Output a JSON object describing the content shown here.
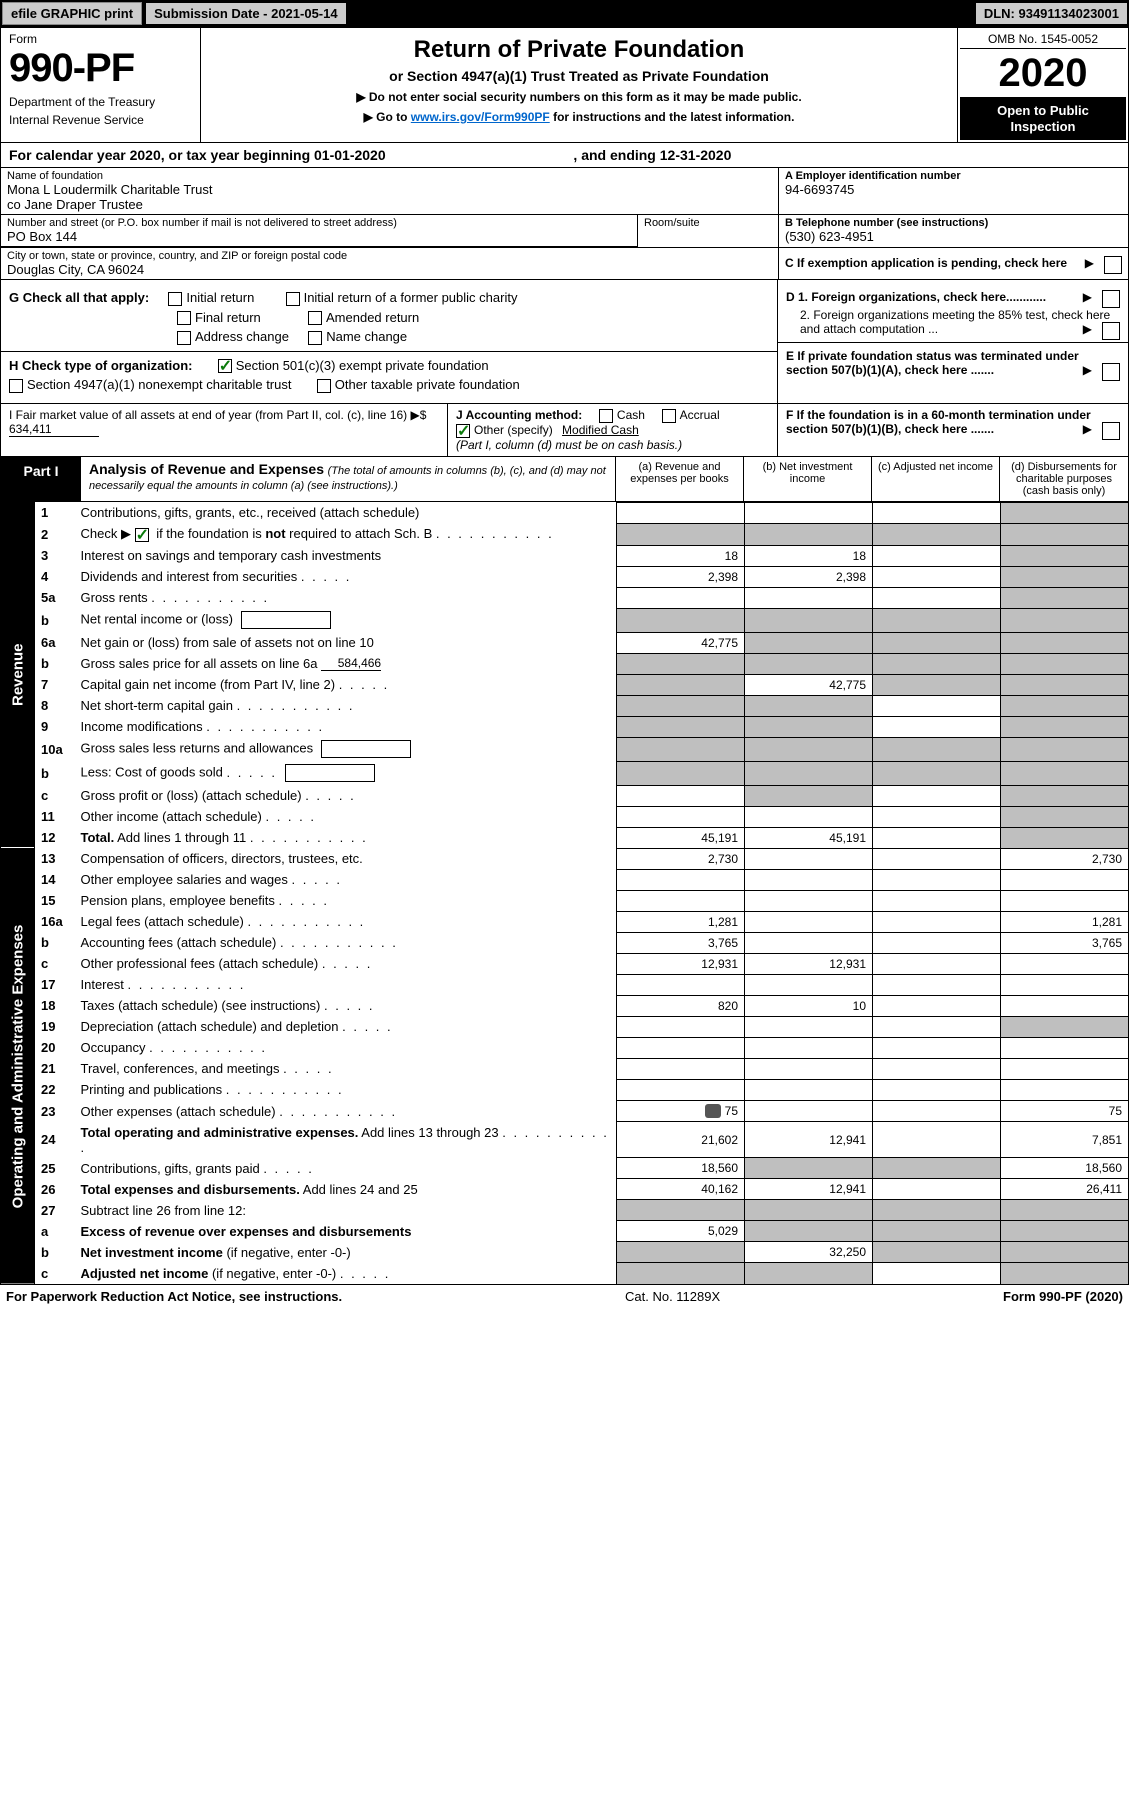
{
  "topbar": {
    "efile": "efile GRAPHIC print",
    "submission": "Submission Date - 2021-05-14",
    "dln": "DLN: 93491134023001"
  },
  "header": {
    "form_word": "Form",
    "form_num": "990-PF",
    "dept1": "Department of the Treasury",
    "dept2": "Internal Revenue Service",
    "title": "Return of Private Foundation",
    "subtitle": "or Section 4947(a)(1) Trust Treated as Private Foundation",
    "instr1": "▶ Do not enter social security numbers on this form as it may be made public.",
    "instr2_pre": "▶ Go to ",
    "instr2_link": "www.irs.gov/Form990PF",
    "instr2_post": " for instructions and the latest information.",
    "omb": "OMB No. 1545-0052",
    "year": "2020",
    "open_pub": "Open to Public Inspection"
  },
  "cal": {
    "text_pre": "For calendar year 2020, or tax year beginning ",
    "begin": "01-01-2020",
    "mid": ", and ending ",
    "end": "12-31-2020"
  },
  "name_block": {
    "label": "Name of foundation",
    "line1": "Mona L Loudermilk Charitable Trust",
    "line2": "co Jane Draper Trustee",
    "a_label": "A  Employer identification number",
    "ein": "94-6693745"
  },
  "addr_block": {
    "label": "Number and street (or P.O. box number if mail is not delivered to street address)",
    "addr": "PO Box 144",
    "room_label": "Room/suite",
    "b_label": "B  Telephone number (see instructions)",
    "phone": "(530) 623-4951"
  },
  "city_block": {
    "label": "City or town, state or province, country, and ZIP or foreign postal code",
    "city": "Douglas City, CA  96024",
    "c_label": "C  If exemption application is pending, check here"
  },
  "g_block": {
    "label": "G  Check all that apply:",
    "opts": {
      "initial": "Initial return",
      "initial_former": "Initial return of a former public charity",
      "final": "Final return",
      "amended": "Amended return",
      "addr_change": "Address change",
      "name_change": "Name change"
    },
    "d1": "D 1. Foreign organizations, check here............",
    "d2": "2. Foreign organizations meeting the 85% test, check here and attach computation ...",
    "e": "E  If private foundation status was terminated under section 507(b)(1)(A), check here ......."
  },
  "h_block": {
    "label": "H  Check type of organization:",
    "o1": "Section 501(c)(3) exempt private foundation",
    "o2": "Section 4947(a)(1) nonexempt charitable trust",
    "o3": "Other taxable private foundation"
  },
  "ij": {
    "i_label": "I  Fair market value of all assets at end of year (from Part II, col. (c), line 16)",
    "i_arrow": "▶$",
    "i_val": "634,411",
    "j_label": "J Accounting method:",
    "j_cash": "Cash",
    "j_accrual": "Accrual",
    "j_other": "Other (specify)",
    "j_other_val": "Modified Cash",
    "j_note": "(Part I, column (d) must be on cash basis.)",
    "f": "F  If the foundation is in a 60-month termination under section 507(b)(1)(B), check here ......."
  },
  "part1": {
    "label": "Part I",
    "title": "Analysis of Revenue and Expenses",
    "note": "(The total of amounts in columns (b), (c), and (d) may not necessarily equal the amounts in column (a) (see instructions).)",
    "col_a": "(a)   Revenue and expenses per books",
    "col_b": "(b)   Net investment income",
    "col_c": "(c)   Adjusted net income",
    "col_d": "(d)   Disbursements for charitable purposes (cash basis only)"
  },
  "sections": {
    "revenue": "Revenue",
    "expenses": "Operating and Administrative Expenses"
  },
  "rows": [
    {
      "n": "1",
      "d": "Contributions, gifts, grants, etc., received (attach schedule)",
      "a": "",
      "b": "",
      "c": "",
      "dd": "",
      "greyC": false,
      "greyD": true
    },
    {
      "n": "2",
      "d": "Check ▶ [✓] if the foundation is <b>not</b> required to attach Sch. B",
      "a": "",
      "b": "",
      "c": "",
      "dd": "",
      "greyA": true,
      "greyB": true,
      "greyC": true,
      "greyD": true,
      "html": true,
      "dots": true
    },
    {
      "n": "3",
      "d": "Interest on savings and temporary cash investments",
      "a": "18",
      "b": "18",
      "c": "",
      "dd": "",
      "greyD": true
    },
    {
      "n": "4",
      "d": "Dividends and interest from securities",
      "a": "2,398",
      "b": "2,398",
      "c": "",
      "dd": "",
      "greyD": true,
      "dots": "s"
    },
    {
      "n": "5a",
      "d": "Gross rents",
      "a": "",
      "b": "",
      "c": "",
      "dd": "",
      "greyD": true,
      "dots": true
    },
    {
      "n": "b",
      "d": "Net rental income or (loss)",
      "a": "",
      "b": "",
      "c": "",
      "dd": "",
      "greyA": true,
      "greyB": true,
      "greyC": true,
      "greyD": true,
      "box": true
    },
    {
      "n": "6a",
      "d": "Net gain or (loss) from sale of assets not on line 10",
      "a": "42,775",
      "b": "",
      "c": "",
      "dd": "",
      "greyB": true,
      "greyC": true,
      "greyD": true
    },
    {
      "n": "b",
      "d": "Gross sales price for all assets on line 6a",
      "line_val": "584,466",
      "a": "",
      "b": "",
      "c": "",
      "dd": "",
      "greyA": true,
      "greyB": true,
      "greyC": true,
      "greyD": true
    },
    {
      "n": "7",
      "d": "Capital gain net income (from Part IV, line 2)",
      "a": "",
      "b": "42,775",
      "c": "",
      "dd": "",
      "greyA": true,
      "greyC": true,
      "greyD": true,
      "dots": "s"
    },
    {
      "n": "8",
      "d": "Net short-term capital gain",
      "a": "",
      "b": "",
      "c": "",
      "dd": "",
      "greyA": true,
      "greyB": true,
      "greyD": true,
      "dots": true
    },
    {
      "n": "9",
      "d": "Income modifications",
      "a": "",
      "b": "",
      "c": "",
      "dd": "",
      "greyA": true,
      "greyB": true,
      "greyD": true,
      "dots": true
    },
    {
      "n": "10a",
      "d": "Gross sales less returns and allowances",
      "a": "",
      "b": "",
      "c": "",
      "dd": "",
      "greyA": true,
      "greyB": true,
      "greyC": true,
      "greyD": true,
      "box": true
    },
    {
      "n": "b",
      "d": "Less: Cost of goods sold",
      "a": "",
      "b": "",
      "c": "",
      "dd": "",
      "greyA": true,
      "greyB": true,
      "greyC": true,
      "greyD": true,
      "box": true,
      "dots": "s"
    },
    {
      "n": "c",
      "d": "Gross profit or (loss) (attach schedule)",
      "a": "",
      "b": "",
      "c": "",
      "dd": "",
      "greyB": true,
      "greyD": true,
      "dots": "s"
    },
    {
      "n": "11",
      "d": "Other income (attach schedule)",
      "a": "",
      "b": "",
      "c": "",
      "dd": "",
      "greyD": true,
      "dots": "s"
    },
    {
      "n": "12",
      "d": "<b>Total.</b> Add lines 1 through 11",
      "a": "45,191",
      "b": "45,191",
      "c": "",
      "dd": "",
      "greyD": true,
      "dots": true,
      "html": true
    },
    {
      "n": "13",
      "d": "Compensation of officers, directors, trustees, etc.",
      "a": "2,730",
      "b": "",
      "c": "",
      "dd": "2,730"
    },
    {
      "n": "14",
      "d": "Other employee salaries and wages",
      "a": "",
      "b": "",
      "c": "",
      "dd": "",
      "dots": "s"
    },
    {
      "n": "15",
      "d": "Pension plans, employee benefits",
      "a": "",
      "b": "",
      "c": "",
      "dd": "",
      "dots": "s"
    },
    {
      "n": "16a",
      "d": "Legal fees (attach schedule)",
      "a": "1,281",
      "b": "",
      "c": "",
      "dd": "1,281",
      "dots": true
    },
    {
      "n": "b",
      "d": "Accounting fees (attach schedule)",
      "a": "3,765",
      "b": "",
      "c": "",
      "dd": "3,765",
      "dots": true
    },
    {
      "n": "c",
      "d": "Other professional fees (attach schedule)",
      "a": "12,931",
      "b": "12,931",
      "c": "",
      "dd": "",
      "dots": "s"
    },
    {
      "n": "17",
      "d": "Interest",
      "a": "",
      "b": "",
      "c": "",
      "dd": "",
      "dots": true
    },
    {
      "n": "18",
      "d": "Taxes (attach schedule) (see instructions)",
      "a": "820",
      "b": "10",
      "c": "",
      "dd": "",
      "dots": "s"
    },
    {
      "n": "19",
      "d": "Depreciation (attach schedule) and depletion",
      "a": "",
      "b": "",
      "c": "",
      "dd": "",
      "greyD": true,
      "dots": "s"
    },
    {
      "n": "20",
      "d": "Occupancy",
      "a": "",
      "b": "",
      "c": "",
      "dd": "",
      "dots": true
    },
    {
      "n": "21",
      "d": "Travel, conferences, and meetings",
      "a": "",
      "b": "",
      "c": "",
      "dd": "",
      "dots": "s"
    },
    {
      "n": "22",
      "d": "Printing and publications",
      "a": "",
      "b": "",
      "c": "",
      "dd": "",
      "dots": true
    },
    {
      "n": "23",
      "d": "Other expenses (attach schedule)",
      "a": "75",
      "b": "",
      "c": "",
      "dd": "75",
      "dots": true,
      "attach": true
    },
    {
      "n": "24",
      "d": "<b>Total operating and administrative expenses.</b> Add lines 13 through 23",
      "a": "21,602",
      "b": "12,941",
      "c": "",
      "dd": "7,851",
      "html": true,
      "dots": true
    },
    {
      "n": "25",
      "d": "Contributions, gifts, grants paid",
      "a": "18,560",
      "b": "",
      "c": "",
      "dd": "18,560",
      "greyB": true,
      "greyC": true,
      "dots": "s"
    },
    {
      "n": "26",
      "d": "<b>Total expenses and disbursements.</b> Add lines 24 and 25",
      "a": "40,162",
      "b": "12,941",
      "c": "",
      "dd": "26,411",
      "html": true
    },
    {
      "n": "27",
      "d": "Subtract line 26 from line 12:",
      "a": "",
      "b": "",
      "c": "",
      "dd": "",
      "greyA": true,
      "greyB": true,
      "greyC": true,
      "greyD": true
    },
    {
      "n": "a",
      "d": "<b>Excess of revenue over expenses and disbursements</b>",
      "a": "5,029",
      "b": "",
      "c": "",
      "dd": "",
      "greyB": true,
      "greyC": true,
      "greyD": true,
      "html": true
    },
    {
      "n": "b",
      "d": "<b>Net investment income</b> (if negative, enter -0-)",
      "a": "",
      "b": "32,250",
      "c": "",
      "dd": "",
      "greyA": true,
      "greyC": true,
      "greyD": true,
      "html": true
    },
    {
      "n": "c",
      "d": "<b>Adjusted net income</b> (if negative, enter -0-)",
      "a": "",
      "b": "",
      "c": "",
      "dd": "",
      "greyA": true,
      "greyB": true,
      "greyD": true,
      "html": true,
      "dots": "s"
    }
  ],
  "footer": {
    "left": "For Paperwork Reduction Act Notice, see instructions.",
    "mid": "Cat. No. 11289X",
    "right": "Form 990-PF (2020)"
  }
}
